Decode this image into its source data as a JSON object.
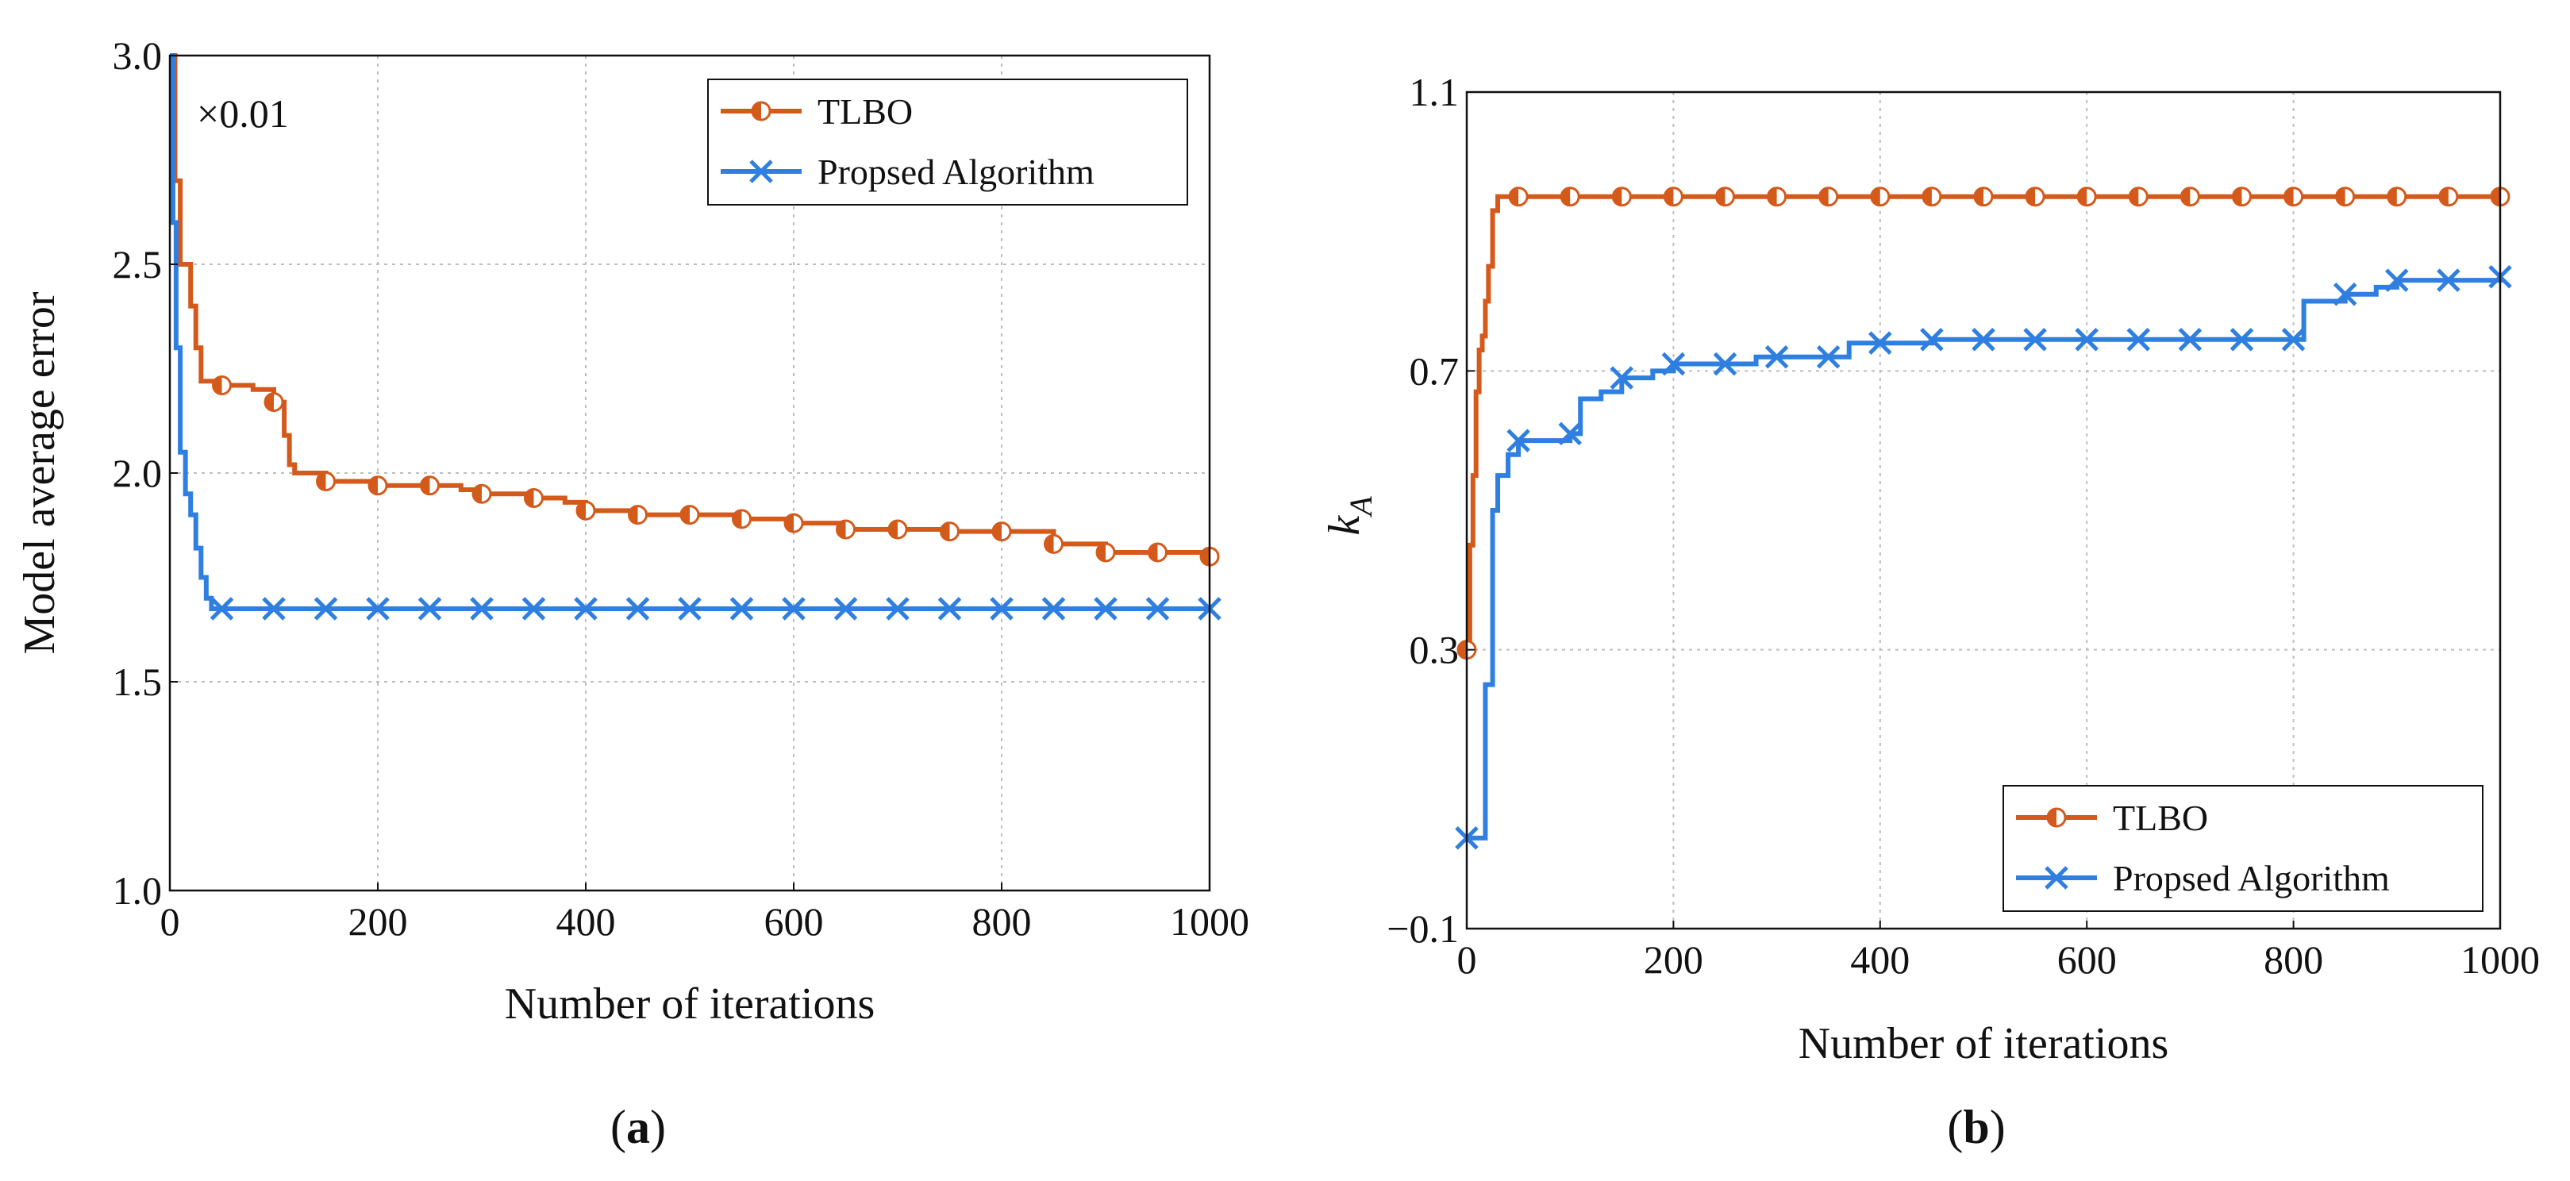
{
  "chart_data": [
    {
      "type": "line",
      "panel_label": "a",
      "xlabel": "Number of iterations",
      "ylabel": "Model average error",
      "scale_note": "×0.01",
      "xlim": [
        0,
        1000
      ],
      "ylim": [
        1.0,
        3.0
      ],
      "xticks": [
        0,
        200,
        400,
        600,
        800,
        1000
      ],
      "yticks": [
        1.0,
        1.5,
        2.0,
        2.5,
        3.0
      ],
      "ytick_labels": [
        "1.0",
        "1.5",
        "2.0",
        "2.5",
        "3.0"
      ],
      "grid": true,
      "legend_position": "top-right",
      "series": [
        {
          "name": "TLBO",
          "color": "#d45a1c",
          "marker": "half-filled-circle",
          "x": [
            0,
            5,
            10,
            20,
            25,
            30,
            50,
            80,
            100,
            110,
            115,
            120,
            150,
            200,
            250,
            280,
            300,
            350,
            380,
            400,
            450,
            500,
            550,
            600,
            650,
            700,
            750,
            800,
            850,
            900,
            950,
            1000
          ],
          "y": [
            3.0,
            2.7,
            2.5,
            2.4,
            2.3,
            2.22,
            2.21,
            2.2,
            2.17,
            2.09,
            2.02,
            2.0,
            1.98,
            1.97,
            1.97,
            1.96,
            1.95,
            1.94,
            1.93,
            1.91,
            1.9,
            1.9,
            1.89,
            1.88,
            1.865,
            1.865,
            1.86,
            1.86,
            1.83,
            1.81,
            1.81,
            1.8
          ],
          "marker_x": [
            50,
            100,
            150,
            200,
            250,
            300,
            350,
            400,
            450,
            500,
            550,
            600,
            650,
            700,
            750,
            800,
            850,
            900,
            950,
            1000
          ]
        },
        {
          "name": "Propsed Algorithm",
          "color": "#2e7fe0",
          "marker": "x",
          "x": [
            0,
            3,
            6,
            10,
            15,
            20,
            25,
            30,
            35,
            40,
            1000
          ],
          "y": [
            3.0,
            2.6,
            2.3,
            2.05,
            1.95,
            1.9,
            1.82,
            1.75,
            1.7,
            1.675,
            1.675
          ],
          "marker_x": [
            50,
            100,
            150,
            200,
            250,
            300,
            350,
            400,
            450,
            500,
            550,
            600,
            650,
            700,
            750,
            800,
            850,
            900,
            950,
            1000
          ]
        }
      ]
    },
    {
      "type": "line",
      "panel_label": "b",
      "xlabel": "Number of iterations",
      "ylabel": "k_A",
      "ylabel_main": "k",
      "ylabel_sub": "A",
      "xlim": [
        0,
        1000
      ],
      "ylim": [
        -0.1,
        1.1
      ],
      "xticks": [
        0,
        200,
        400,
        600,
        800,
        1000
      ],
      "yticks": [
        -0.1,
        0.3,
        0.7,
        1.1
      ],
      "ytick_labels": [
        "−0.1",
        "0.3",
        "0.7",
        "1.1"
      ],
      "grid": true,
      "legend_position": "bottom-right",
      "series": [
        {
          "name": "TLBO",
          "color": "#d45a1c",
          "marker": "half-filled-circle",
          "x": [
            0,
            3,
            6,
            9,
            12,
            15,
            18,
            21,
            25,
            30,
            35,
            1000
          ],
          "y": [
            0.3,
            0.45,
            0.55,
            0.67,
            0.73,
            0.75,
            0.8,
            0.85,
            0.93,
            0.95,
            0.95,
            0.95
          ],
          "marker_x": [
            0,
            50,
            100,
            150,
            200,
            250,
            300,
            350,
            400,
            450,
            500,
            550,
            600,
            650,
            700,
            750,
            800,
            850,
            900,
            950,
            1000
          ]
        },
        {
          "name": "Propsed Algorithm",
          "color": "#2e7fe0",
          "marker": "x",
          "x": [
            0,
            15,
            18,
            25,
            30,
            40,
            50,
            60,
            100,
            110,
            130,
            150,
            180,
            200,
            250,
            280,
            300,
            350,
            370,
            400,
            450,
            500,
            800,
            810,
            850,
            880,
            900,
            950,
            1000
          ],
          "y": [
            0.03,
            0.03,
            0.25,
            0.5,
            0.55,
            0.58,
            0.6,
            0.6,
            0.61,
            0.66,
            0.67,
            0.69,
            0.7,
            0.71,
            0.71,
            0.72,
            0.72,
            0.72,
            0.74,
            0.74,
            0.745,
            0.745,
            0.745,
            0.8,
            0.81,
            0.82,
            0.83,
            0.83,
            0.835
          ],
          "marker_x": [
            0,
            50,
            100,
            150,
            200,
            250,
            300,
            350,
            400,
            450,
            500,
            550,
            600,
            650,
            700,
            750,
            800,
            850,
            900,
            950,
            1000
          ]
        }
      ]
    }
  ]
}
